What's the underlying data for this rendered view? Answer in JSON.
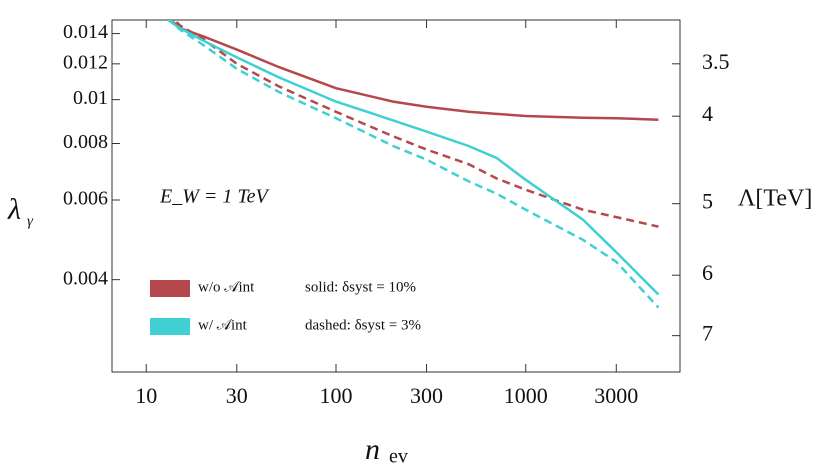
{
  "chart_data": {
    "type": "line",
    "x_label": "n",
    "x_label_sub": "ev",
    "y_label": "λ",
    "y_label_sub": "γ",
    "y2_label": "Λ[TeV]",
    "annotation": "E_W = 1 TeV",
    "xscale": "log",
    "yscale": "log",
    "y2scale": "log",
    "y2_inverted": true,
    "xlim": [
      6.6,
      6500
    ],
    "xticks": [
      10,
      30,
      100,
      300,
      1000,
      3000
    ],
    "ylim": [
      0.0025,
      0.015
    ],
    "yticks": [
      0.004,
      0.006,
      0.008,
      0.01,
      0.012,
      0.014
    ],
    "y2lim": [
      3.13,
      7.68
    ],
    "y2ticks": [
      3.5,
      4,
      5,
      6,
      7
    ],
    "x": [
      13,
      15,
      20,
      30,
      50,
      100,
      200,
      300,
      500,
      700,
      1000,
      2000,
      3000,
      5000
    ],
    "line_styles": [
      {
        "label": "solid: δsyst = 10%",
        "dash": false
      },
      {
        "label": "dashed: δsyst = 3%",
        "dash": true
      }
    ],
    "series": [
      {
        "name": "w/o 𝒜int",
        "color": "#b5484c",
        "values": [
          [
            0.0152,
            0.0144,
            0.0138,
            0.0129,
            0.0118,
            0.0106,
            0.0099,
            0.00965,
            0.0094,
            0.0093,
            0.0092,
            0.00912,
            0.0091,
            0.00903
          ],
          [
            0.0156,
            0.0146,
            0.0136,
            0.012,
            0.0107,
            0.0094,
            0.0083,
            0.00776,
            0.0072,
            0.0067,
            0.00632,
            0.00571,
            0.0055,
            0.00524
          ]
        ]
      },
      {
        "name": "w/ 𝒜int",
        "color": "#3fd0d4",
        "values": [
          [
            0.015,
            0.0144,
            0.0135,
            0.0124,
            0.0112,
            0.0099,
            0.009,
            0.0085,
            0.0079,
            0.00744,
            0.00665,
            0.00543,
            0.0046,
            0.00371
          ],
          [
            0.0152,
            0.0143,
            0.0132,
            0.0117,
            0.0104,
            0.0091,
            0.0079,
            0.00737,
            0.0066,
            0.0062,
            0.00571,
            0.0049,
            0.00438,
            0.00347
          ]
        ]
      }
    ]
  }
}
